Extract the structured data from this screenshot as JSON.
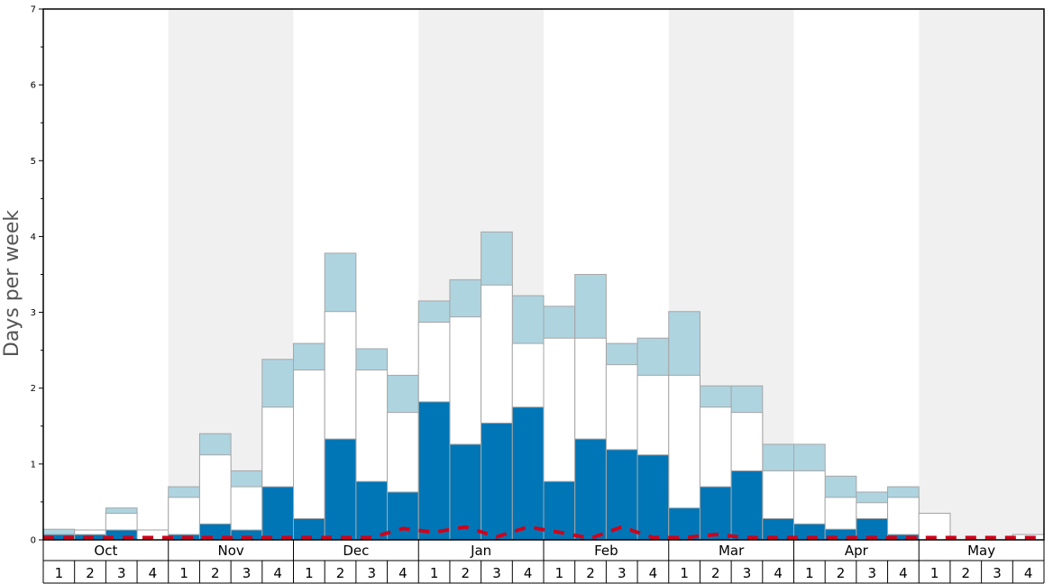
{
  "chart_data": {
    "type": "bar",
    "ylabel": "Days per week",
    "ylim": [
      0,
      7
    ],
    "yticks": [
      "0",
      "1",
      "2",
      "3",
      "4",
      "5",
      "6",
      "7"
    ],
    "months": [
      "Oct",
      "Nov",
      "Dec",
      "Jan",
      "Feb",
      "Mar",
      "Apr",
      "May"
    ],
    "weeks": [
      "1",
      "2",
      "3",
      "4"
    ],
    "stacked": false,
    "series": [
      {
        "key": "low",
        "color": "#0076b6",
        "values": [
          0.07,
          0.07,
          0.13,
          0,
          0.07,
          0.21,
          0.13,
          0.7,
          0.28,
          1.33,
          0.77,
          0.63,
          1.82,
          1.26,
          1.54,
          1.75,
          0.77,
          1.33,
          1.19,
          1.12,
          0.42,
          0.7,
          0.91,
          0.28,
          0.21,
          0.14,
          0.28,
          0.07,
          0,
          0,
          0,
          0
        ]
      },
      {
        "key": "mid",
        "color": "#ffffff",
        "values": [
          0.07,
          0.13,
          0.35,
          0.13,
          0.56,
          1.12,
          0.7,
          1.75,
          2.24,
          3.01,
          2.24,
          1.68,
          2.87,
          2.94,
          3.36,
          2.59,
          2.66,
          2.66,
          2.31,
          2.17,
          2.17,
          1.75,
          1.68,
          0.91,
          0.91,
          0.56,
          0.49,
          0.56,
          0.35,
          0,
          0,
          0.07
        ]
      },
      {
        "key": "high",
        "color": "#aed4e0",
        "values": [
          0.14,
          0.13,
          0.42,
          0.13,
          0.7,
          1.4,
          0.91,
          2.38,
          2.59,
          3.78,
          2.52,
          2.17,
          3.15,
          3.43,
          4.06,
          3.22,
          3.08,
          3.5,
          2.59,
          2.66,
          3.01,
          2.03,
          2.03,
          1.26,
          1.26,
          0.84,
          0.63,
          0.7,
          0.35,
          0,
          0,
          0.07
        ]
      }
    ],
    "line": {
      "style": "dashed",
      "color": "#d0021b",
      "values": [
        0.03,
        0.03,
        0.03,
        0.03,
        0.03,
        0.03,
        0.03,
        0.03,
        0.03,
        0.03,
        0.03,
        0.15,
        0.1,
        0.17,
        0.04,
        0.17,
        0.1,
        0.02,
        0.17,
        0.03,
        0.03,
        0.07,
        0.03,
        0.03,
        0.03,
        0.03,
        0.03,
        0.03,
        0.03,
        0.03,
        0.03,
        0.03
      ]
    },
    "shaded_months": [
      "Nov",
      "Jan",
      "Mar",
      "May"
    ],
    "shade_color": "#f0f0f0",
    "grid": false
  }
}
